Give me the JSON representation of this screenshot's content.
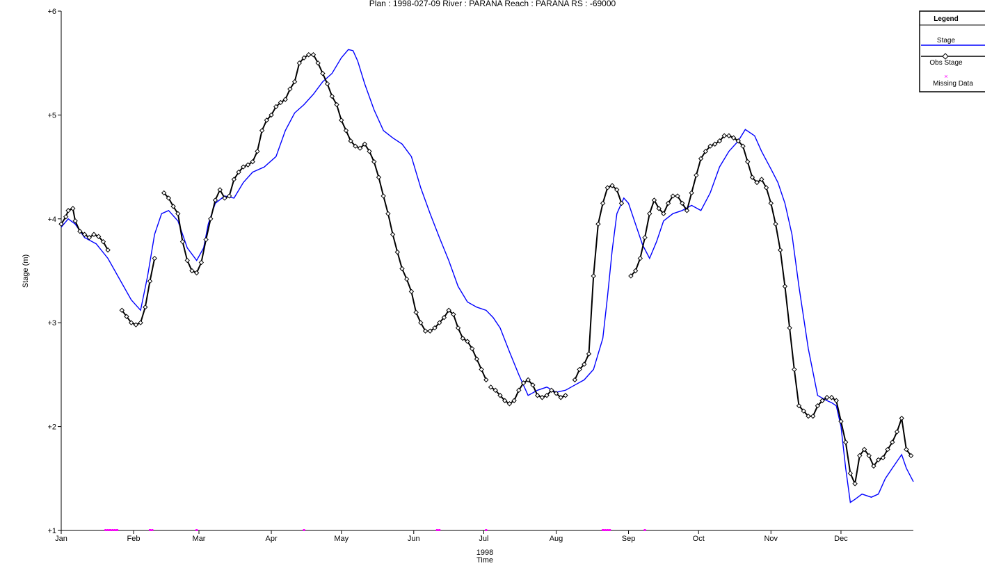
{
  "chart_data": {
    "type": "line",
    "title": "Plan : 1998-027-09    River : PARANA    Reach : PARANA    RS : -69000",
    "xlabel": "Time",
    "ylabel": "Stage (m)",
    "year_label": "1998",
    "ylim": [
      1,
      6
    ],
    "yticks": [
      1,
      2,
      3,
      4,
      5,
      6
    ],
    "ytick_labels": [
      "+1",
      "+2",
      "+3",
      "+4",
      "+5",
      "+6"
    ],
    "xlim": [
      0,
      365
    ],
    "months": [
      "Jan",
      "Feb",
      "Mar",
      "Apr",
      "May",
      "Jun",
      "Jul",
      "Aug",
      "Sep",
      "Oct",
      "Nov",
      "Dec"
    ],
    "month_days": [
      0,
      31,
      59,
      90,
      120,
      151,
      181,
      212,
      243,
      273,
      304,
      334
    ],
    "legend": {
      "title": "Legend",
      "position": "top-right",
      "entries": [
        "Stage",
        "Obs Stage",
        "Missing Data"
      ]
    },
    "colors": {
      "stage": "#0000ff",
      "obs": "#000000",
      "missing": "#ff00ff"
    },
    "series": [
      {
        "name": "Stage",
        "x": [
          0,
          3,
          6,
          10,
          15,
          20,
          25,
          30,
          34,
          37,
          40,
          43,
          46,
          50,
          54,
          58,
          61,
          63,
          66,
          70,
          74,
          78,
          82,
          87,
          92,
          96,
          100,
          104,
          108,
          112,
          116,
          120,
          123,
          125,
          127,
          130,
          134,
          138,
          142,
          146,
          150,
          154,
          158,
          162,
          166,
          170,
          174,
          178,
          182,
          185,
          188,
          192,
          196,
          200,
          204,
          208,
          212,
          216,
          220,
          224,
          228,
          232,
          234,
          236,
          238,
          241,
          243,
          246,
          249,
          252,
          255,
          258,
          262,
          266,
          270,
          274,
          278,
          282,
          286,
          290,
          293,
          297,
          300,
          304,
          307,
          310,
          313,
          316,
          320,
          324,
          328,
          330,
          332,
          334,
          336,
          338,
          340,
          343,
          347,
          350,
          353,
          356,
          360,
          362,
          365
        ],
        "values": [
          3.92,
          4.0,
          3.95,
          3.82,
          3.76,
          3.62,
          3.42,
          3.22,
          3.12,
          3.45,
          3.85,
          4.05,
          4.08,
          3.98,
          3.72,
          3.6,
          3.72,
          3.95,
          4.15,
          4.22,
          4.2,
          4.35,
          4.45,
          4.5,
          4.6,
          4.85,
          5.02,
          5.1,
          5.2,
          5.32,
          5.4,
          5.55,
          5.63,
          5.62,
          5.52,
          5.3,
          5.05,
          4.85,
          4.78,
          4.72,
          4.6,
          4.3,
          4.05,
          3.82,
          3.6,
          3.35,
          3.2,
          3.15,
          3.12,
          3.05,
          2.95,
          2.72,
          2.5,
          2.3,
          2.35,
          2.38,
          2.33,
          2.35,
          2.4,
          2.45,
          2.55,
          2.85,
          3.25,
          3.7,
          4.05,
          4.2,
          4.15,
          3.95,
          3.75,
          3.62,
          3.78,
          3.98,
          4.05,
          4.08,
          4.13,
          4.08,
          4.25,
          4.5,
          4.65,
          4.75,
          4.86,
          4.8,
          4.65,
          4.48,
          4.35,
          4.15,
          3.85,
          3.35,
          2.75,
          2.3,
          2.25,
          2.23,
          2.2,
          2.0,
          1.6,
          1.27,
          1.3,
          1.35,
          1.32,
          1.35,
          1.5,
          1.6,
          1.73,
          1.6,
          1.47
        ]
      },
      {
        "name": "Obs Stage",
        "segments": [
          {
            "x": [
              0,
              2,
              3,
              5,
              6,
              8,
              10,
              12,
              14,
              16,
              18,
              20
            ],
            "values": [
              3.95,
              4.02,
              4.08,
              4.1,
              3.98,
              3.88,
              3.85,
              3.82,
              3.85,
              3.83,
              3.78,
              3.7
            ]
          },
          {
            "x": [
              26,
              28,
              30,
              32,
              34,
              36,
              38,
              40
            ],
            "values": [
              3.12,
              3.06,
              3.0,
              2.98,
              3.0,
              3.15,
              3.4,
              3.62
            ]
          },
          {
            "x": [
              44,
              46,
              48,
              50,
              52,
              54,
              56,
              58,
              60,
              62,
              64,
              66,
              68,
              70,
              72,
              74,
              76,
              78,
              80,
              82,
              84,
              86,
              88,
              90,
              92,
              94,
              96,
              98,
              100,
              102,
              104,
              106,
              108,
              110,
              112,
              114,
              116,
              118,
              120,
              122,
              124,
              126,
              128,
              130,
              132,
              134,
              136,
              138,
              140,
              142,
              144,
              146,
              148,
              150,
              152,
              154,
              156,
              158,
              160,
              162,
              164,
              166,
              168,
              170,
              172,
              174,
              176,
              178,
              180,
              182
            ],
            "values": [
              4.25,
              4.2,
              4.12,
              4.05,
              3.78,
              3.6,
              3.5,
              3.48,
              3.58,
              3.8,
              4.0,
              4.18,
              4.28,
              4.2,
              4.22,
              4.38,
              4.45,
              4.5,
              4.52,
              4.55,
              4.65,
              4.85,
              4.95,
              5.0,
              5.08,
              5.12,
              5.15,
              5.25,
              5.32,
              5.5,
              5.55,
              5.58,
              5.58,
              5.5,
              5.4,
              5.3,
              5.18,
              5.1,
              4.95,
              4.85,
              4.75,
              4.7,
              4.68,
              4.72,
              4.65,
              4.55,
              4.4,
              4.22,
              4.05,
              3.85,
              3.68,
              3.52,
              3.42,
              3.3,
              3.1,
              3.0,
              2.92,
              2.92,
              2.95,
              3.0,
              3.05,
              3.12,
              3.08,
              2.95,
              2.85,
              2.82,
              2.75,
              2.65,
              2.55,
              2.45
            ]
          },
          {
            "x": [
              184,
              186,
              188,
              190,
              192,
              194,
              196,
              198,
              200,
              202,
              204,
              206,
              208,
              210,
              212,
              214,
              216
            ],
            "values": [
              2.38,
              2.35,
              2.3,
              2.25,
              2.22,
              2.25,
              2.35,
              2.42,
              2.45,
              2.4,
              2.3,
              2.28,
              2.3,
              2.35,
              2.32,
              2.28,
              2.3
            ]
          },
          {
            "x": [
              220,
              222,
              224,
              226,
              228,
              230,
              232,
              234,
              236,
              238,
              240
            ],
            "values": [
              2.45,
              2.55,
              2.6,
              2.7,
              3.45,
              3.95,
              4.15,
              4.3,
              4.32,
              4.28,
              4.15
            ]
          },
          {
            "x": [
              244,
              246,
              248,
              250,
              252,
              254,
              256,
              258,
              260,
              262,
              264,
              266,
              268,
              270,
              272,
              274,
              276,
              278,
              280,
              282,
              284,
              286,
              288,
              290,
              292,
              294,
              296,
              298,
              300,
              302,
              304,
              306,
              308,
              310,
              312,
              314,
              316,
              318,
              320,
              322,
              324,
              326,
              328
            ],
            "values": [
              3.45,
              3.5,
              3.62,
              3.82,
              4.05,
              4.18,
              4.1,
              4.05,
              4.15,
              4.22,
              4.22,
              4.15,
              4.08,
              4.25,
              4.42,
              4.58,
              4.65,
              4.7,
              4.72,
              4.75,
              4.8,
              4.8,
              4.78,
              4.75,
              4.7,
              4.55,
              4.4,
              4.35,
              4.38,
              4.3,
              4.15,
              3.95,
              3.7,
              3.35,
              2.95,
              2.55,
              2.2,
              2.15,
              2.1,
              2.1,
              2.2,
              2.25,
              2.28
            ]
          },
          {
            "x": [
              330,
              332,
              334,
              336,
              338,
              340,
              342,
              344,
              346,
              348,
              350,
              352,
              354,
              356,
              358,
              360,
              362,
              364
            ],
            "values": [
              2.28,
              2.25,
              2.05,
              1.85,
              1.55,
              1.45,
              1.72,
              1.78,
              1.72,
              1.62,
              1.68,
              1.7,
              1.78,
              1.85,
              1.95,
              2.08,
              1.78,
              1.72
            ]
          }
        ]
      },
      {
        "name": "Missing Data",
        "x": [
          19,
          20,
          21,
          22,
          23,
          24,
          38,
          39,
          58,
          104,
          161,
          162,
          182,
          232,
          233,
          234,
          235,
          250
        ],
        "values": [
          1,
          1,
          1,
          1,
          1,
          1,
          1,
          1,
          1,
          1,
          1,
          1,
          1,
          1,
          1,
          1,
          1,
          1
        ]
      }
    ]
  }
}
